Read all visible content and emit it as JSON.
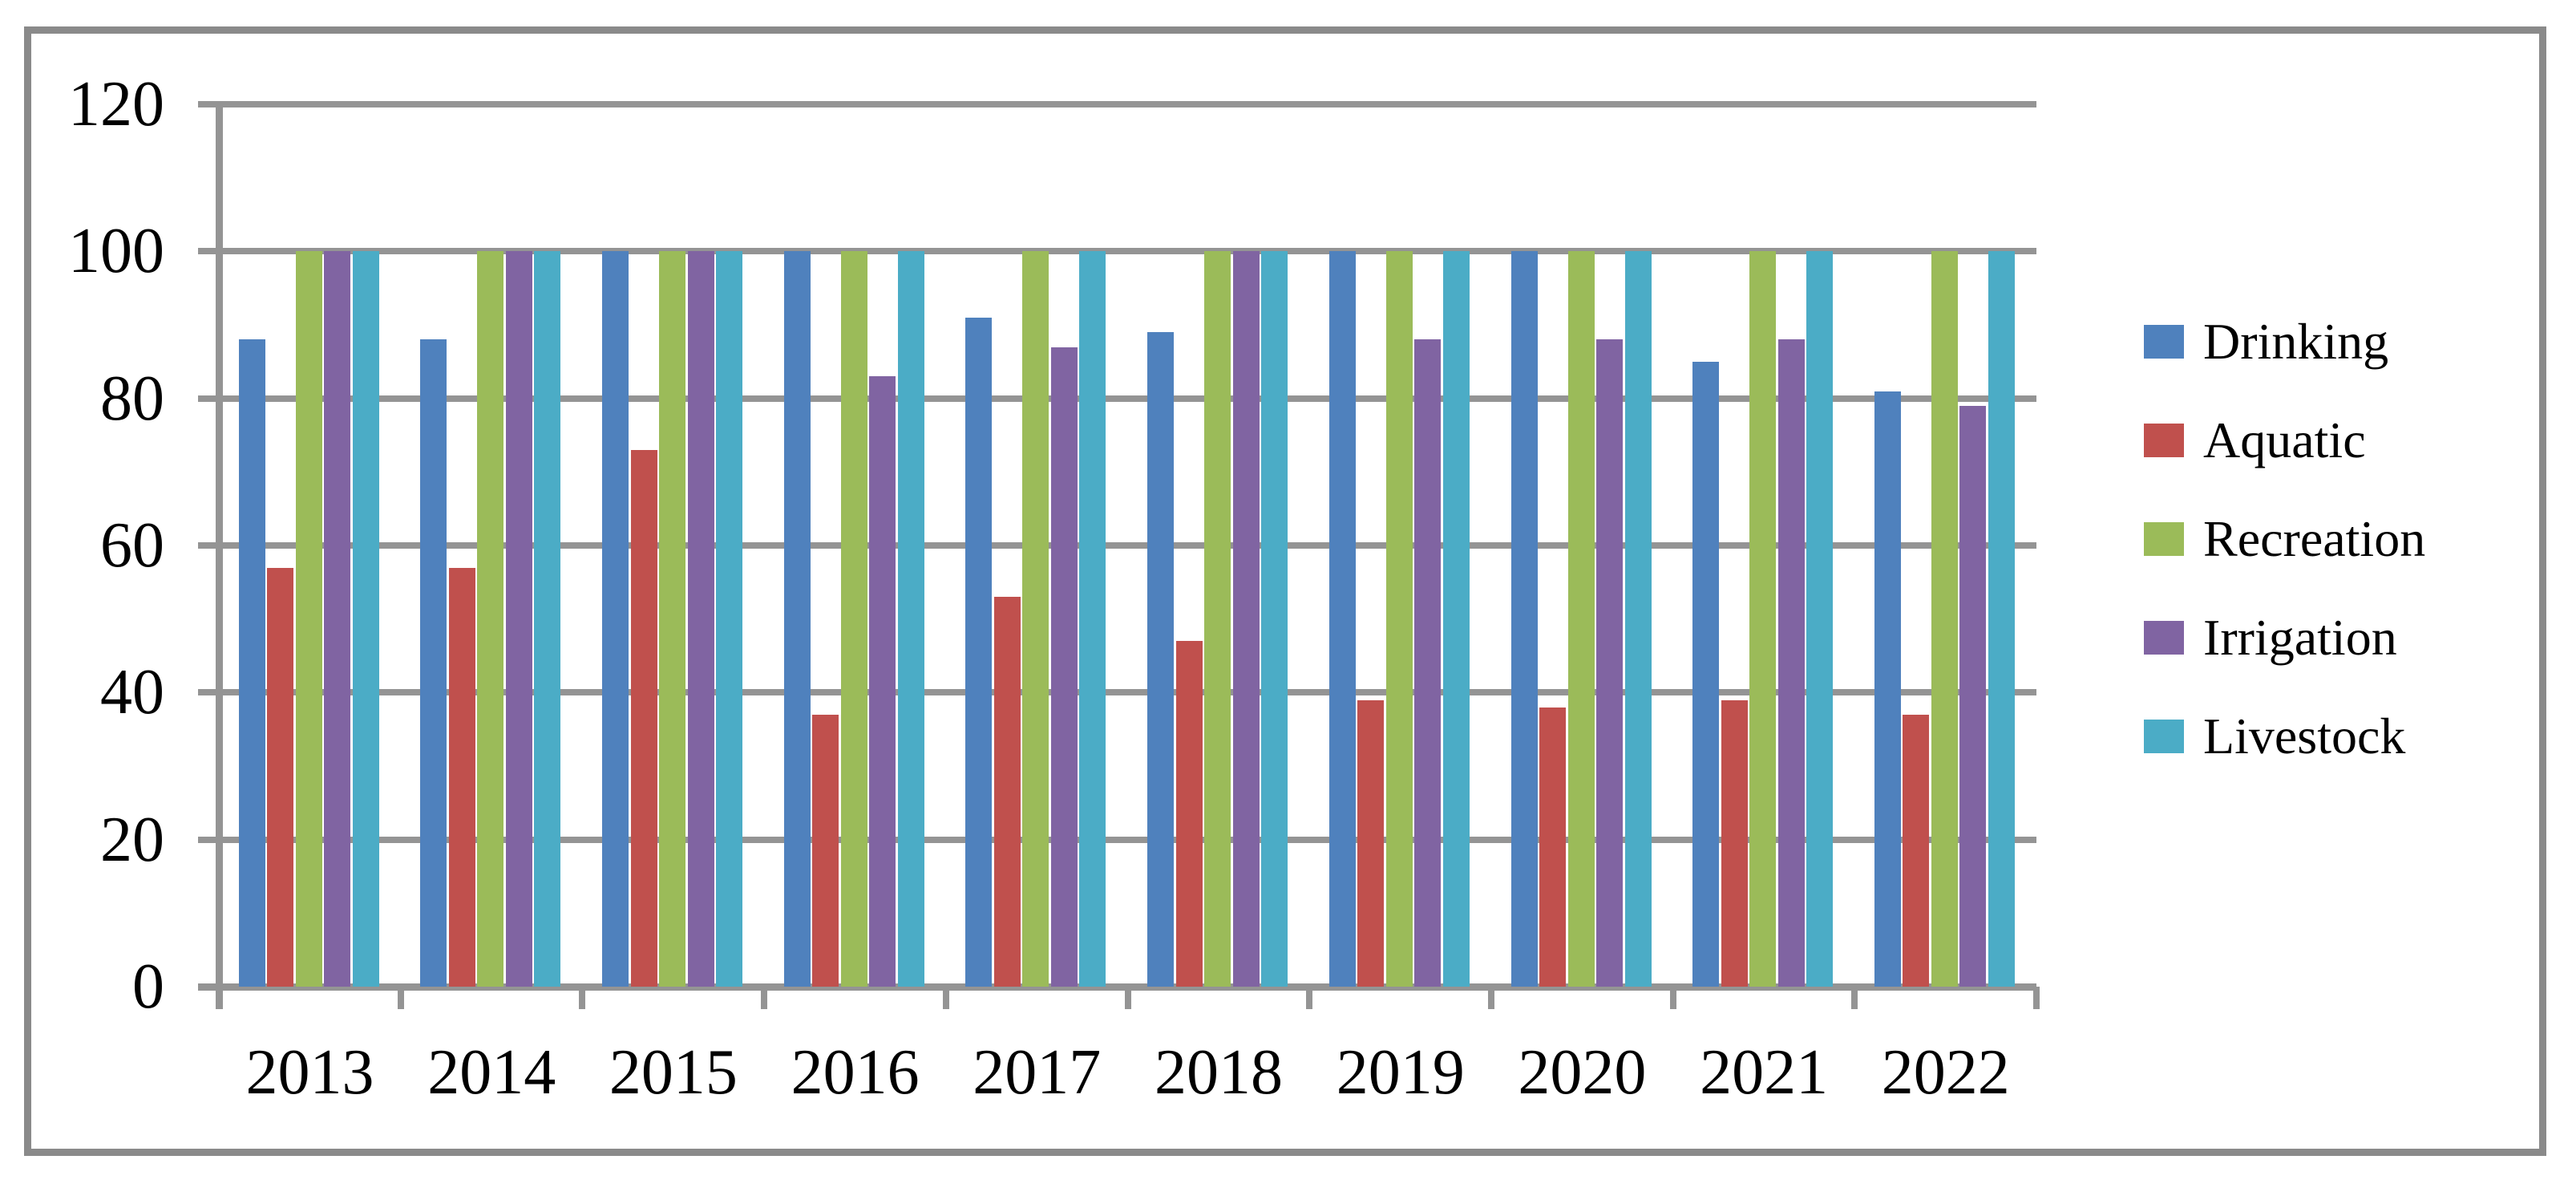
{
  "chart_data": {
    "type": "bar",
    "title": "",
    "categories": [
      "2013",
      "2014",
      "2015",
      "2016",
      "2017",
      "2018",
      "2019",
      "2020",
      "2021",
      "2022"
    ],
    "series": [
      {
        "name": "Drinking",
        "color": "#4F81BD",
        "values": [
          88,
          88,
          100,
          100,
          91,
          89,
          100,
          100,
          85,
          81
        ]
      },
      {
        "name": "Aquatic",
        "color": "#C0504D",
        "values": [
          57,
          57,
          73,
          37,
          53,
          47,
          39,
          38,
          39,
          37
        ]
      },
      {
        "name": "Recreation",
        "color": "#9BBB59",
        "values": [
          100,
          100,
          100,
          100,
          100,
          100,
          100,
          100,
          100,
          100
        ]
      },
      {
        "name": "Irrigation",
        "color": "#8064A2",
        "values": [
          100,
          100,
          100,
          83,
          87,
          100,
          88,
          88,
          88,
          79
        ]
      },
      {
        "name": "Livestock",
        "color": "#4BACC6",
        "values": [
          100,
          100,
          100,
          100,
          100,
          100,
          100,
          100,
          100,
          100
        ]
      }
    ],
    "xlabel": "",
    "ylabel": "",
    "ylim": [
      0,
      120
    ],
    "yticks": [
      0,
      20,
      40,
      60,
      80,
      100,
      120
    ],
    "grid": true,
    "legend_position": "right"
  },
  "colors": {
    "gridline": "#949494",
    "axis": "#949494",
    "frame_border": "#8A8A8A",
    "background": "#FFFFFF",
    "text": "#000000"
  }
}
